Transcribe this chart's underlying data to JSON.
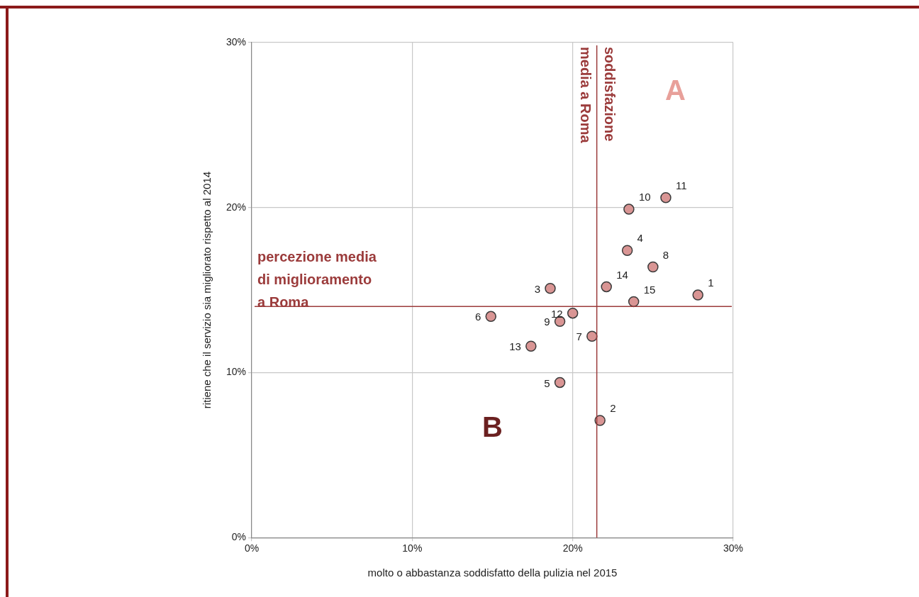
{
  "chart_data": {
    "type": "scatter",
    "xlabel": "molto o abbastanza soddisfatto della pulizia nel 2015",
    "ylabel": "ritiene che il servizio sia migliorato rispetto al 2014",
    "x": [
      27.8,
      21.7,
      18.6,
      23.4,
      19.2,
      14.9,
      21.2,
      25.0,
      19.2,
      23.5,
      25.8,
      20.0,
      17.4,
      22.1,
      23.8
    ],
    "series": [
      {
        "color": "#d99594",
        "values": [
          14.7,
          7.1,
          15.1,
          17.4,
          9.4,
          13.4,
          12.2,
          16.4,
          13.1,
          19.9,
          20.6,
          13.6,
          11.6,
          15.2,
          14.3
        ]
      }
    ],
    "marker": "circle",
    "xlim": [
      0,
      30
    ],
    "xticks": [
      {
        "value": 0,
        "label": "0%"
      },
      {
        "value": 10,
        "label": "10%"
      },
      {
        "value": 20,
        "label": "20%"
      },
      {
        "value": 30,
        "label": "30%"
      }
    ],
    "ylim": [
      0,
      30
    ],
    "yticks": [
      {
        "value": 0,
        "label": "0%"
      },
      {
        "value": 10,
        "label": "10%"
      },
      {
        "value": 20,
        "label": "20%"
      },
      {
        "value": 30,
        "label": "30%"
      }
    ],
    "grid": true,
    "legend": false,
    "ref_lines": [
      {
        "axis": "x",
        "value": 21.5,
        "label": "soddisfazione\nmedia a Roma",
        "color": "#9b3b3b"
      },
      {
        "axis": "y",
        "value": 14.0,
        "label": "percezione media\ndi miglioramento\na Roma",
        "color": "#9b3b3b"
      }
    ],
    "annotations": [
      {
        "text": "1",
        "x": 27.8,
        "y": 14.7
      },
      {
        "text": "2",
        "x": 21.7,
        "y": 7.1
      },
      {
        "text": "3",
        "x": 18.6,
        "y": 15.1
      },
      {
        "text": "4",
        "x": 23.4,
        "y": 17.4
      },
      {
        "text": "5",
        "x": 19.2,
        "y": 9.4
      },
      {
        "text": "6",
        "x": 14.9,
        "y": 13.4
      },
      {
        "text": "7",
        "x": 21.2,
        "y": 12.2
      },
      {
        "text": "8",
        "x": 25.0,
        "y": 16.4
      },
      {
        "text": "9",
        "x": 19.2,
        "y": 13.1
      },
      {
        "text": "10",
        "x": 23.5,
        "y": 19.9
      },
      {
        "text": "11",
        "x": 25.8,
        "y": 20.6
      },
      {
        "text": "12",
        "x": 20.0,
        "y": 13.6
      },
      {
        "text": "13",
        "x": 17.4,
        "y": 11.6
      },
      {
        "text": "14",
        "x": 22.1,
        "y": 15.2
      },
      {
        "text": "15",
        "x": 23.8,
        "y": 14.3
      },
      "A",
      "B"
    ]
  }
}
